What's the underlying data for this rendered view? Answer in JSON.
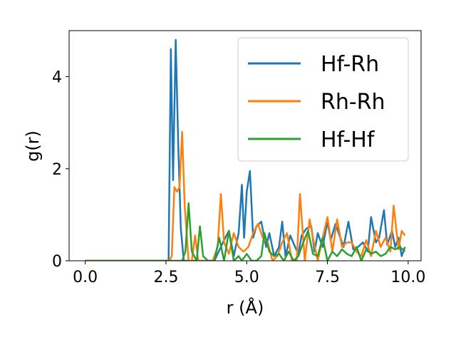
{
  "chart_data": {
    "type": "line",
    "title": "",
    "xlabel": "r (Å)",
    "ylabel": "g(r)",
    "xlim": [
      -0.5,
      10.4
    ],
    "ylim": [
      0,
      5.0
    ],
    "xticks": [
      0.0,
      2.5,
      5.0,
      7.5,
      10.0
    ],
    "xtick_labels": [
      "0.0",
      "2.5",
      "5.0",
      "7.5",
      "10.0"
    ],
    "yticks": [
      0,
      2,
      4
    ],
    "ytick_labels": [
      "0",
      "2",
      "4"
    ],
    "grid": false,
    "legend": "top-right",
    "series": [
      {
        "name": "Hf-Rh",
        "color": "#1f77b4",
        "x": [
          0.0,
          2.5,
          2.58,
          2.65,
          2.72,
          2.8,
          2.88,
          2.96,
          3.05,
          3.5,
          4.0,
          4.3,
          4.45,
          4.6,
          4.75,
          4.85,
          4.92,
          5.0,
          5.1,
          5.2,
          5.3,
          5.45,
          5.6,
          5.7,
          5.85,
          6.0,
          6.1,
          6.2,
          6.35,
          6.5,
          6.6,
          6.7,
          6.85,
          7.0,
          7.1,
          7.2,
          7.35,
          7.5,
          7.6,
          7.75,
          7.9,
          8.0,
          8.15,
          8.3,
          8.45,
          8.6,
          8.75,
          8.85,
          9.0,
          9.1,
          9.25,
          9.35,
          9.5,
          9.6,
          9.7,
          9.8,
          9.9
        ],
        "y": [
          0.0,
          0.0,
          0.0,
          4.6,
          1.75,
          4.8,
          2.5,
          0.7,
          0.0,
          0.0,
          0.0,
          0.45,
          0.65,
          0.1,
          0.6,
          1.65,
          0.5,
          1.5,
          1.95,
          0.5,
          0.75,
          0.85,
          0.3,
          0.6,
          0.1,
          0.3,
          0.85,
          0.1,
          0.55,
          0.3,
          0.15,
          0.55,
          0.7,
          0.75,
          0.2,
          0.6,
          0.3,
          0.85,
          0.45,
          0.8,
          0.5,
          0.3,
          0.85,
          0.25,
          0.3,
          0.4,
          0.2,
          0.95,
          0.4,
          0.5,
          1.1,
          0.35,
          0.65,
          0.3,
          0.5,
          0.1,
          0.3
        ]
      },
      {
        "name": "Rh-Rh",
        "color": "#ff7f0e",
        "x": [
          0.0,
          2.6,
          2.68,
          2.76,
          2.84,
          2.92,
          3.0,
          3.08,
          3.2,
          3.3,
          3.4,
          3.5,
          3.65,
          3.8,
          3.95,
          4.1,
          4.2,
          4.3,
          4.45,
          4.6,
          4.75,
          4.9,
          5.05,
          5.2,
          5.35,
          5.5,
          5.65,
          5.8,
          5.95,
          6.1,
          6.25,
          6.4,
          6.55,
          6.65,
          6.8,
          6.95,
          7.05,
          7.2,
          7.35,
          7.5,
          7.65,
          7.8,
          7.95,
          8.1,
          8.25,
          8.4,
          8.55,
          8.7,
          8.85,
          9.0,
          9.15,
          9.3,
          9.45,
          9.55,
          9.7,
          9.8,
          9.9
        ],
        "y": [
          0.0,
          0.0,
          0.1,
          1.6,
          1.5,
          1.6,
          2.8,
          1.2,
          0.0,
          0.0,
          0.55,
          0.0,
          0.0,
          0.0,
          0.0,
          0.3,
          1.45,
          0.4,
          0.15,
          0.6,
          0.3,
          0.2,
          0.3,
          0.6,
          0.8,
          0.5,
          0.4,
          0.0,
          0.1,
          0.4,
          0.6,
          0.0,
          0.0,
          1.45,
          0.0,
          0.9,
          0.5,
          0.0,
          0.5,
          0.95,
          0.2,
          0.9,
          0.3,
          0.4,
          0.4,
          0.2,
          0.1,
          0.45,
          0.1,
          0.65,
          0.3,
          0.5,
          0.2,
          1.2,
          0.25,
          0.65,
          0.55
        ]
      },
      {
        "name": "Hf-Hf",
        "color": "#2ca02c",
        "x": [
          0.0,
          3.0,
          3.1,
          3.2,
          3.3,
          3.45,
          3.55,
          3.65,
          3.8,
          4.0,
          4.15,
          4.3,
          4.45,
          4.6,
          4.75,
          4.85,
          5.0,
          5.15,
          5.3,
          5.45,
          5.55,
          5.7,
          5.85,
          6.0,
          6.15,
          6.3,
          6.45,
          6.6,
          6.75,
          6.9,
          7.05,
          7.2,
          7.35,
          7.5,
          7.65,
          7.8,
          7.95,
          8.1,
          8.25,
          8.4,
          8.55,
          8.7,
          8.85,
          9.0,
          9.15,
          9.3,
          9.45,
          9.6,
          9.75,
          9.9
        ],
        "y": [
          0.0,
          0.0,
          0.2,
          1.25,
          0.2,
          0.0,
          0.75,
          0.1,
          0.0,
          0.0,
          0.5,
          0.0,
          0.65,
          0.0,
          0.1,
          0.0,
          0.15,
          0.0,
          0.0,
          0.1,
          0.6,
          0.2,
          0.1,
          0.15,
          0.0,
          0.2,
          0.0,
          0.1,
          0.4,
          0.65,
          0.15,
          0.1,
          0.5,
          0.0,
          0.2,
          0.1,
          0.25,
          0.15,
          0.1,
          0.3,
          0.0,
          0.25,
          0.15,
          0.2,
          0.1,
          0.15,
          0.3,
          0.25,
          0.3,
          0.2
        ]
      }
    ]
  }
}
